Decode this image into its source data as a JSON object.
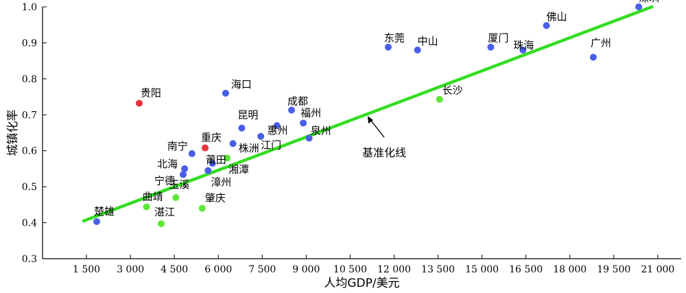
{
  "chart_data": {
    "type": "scatter",
    "xlabel": "人均GDP/美元",
    "ylabel": "城镇化率",
    "xlim": [
      0,
      21800
    ],
    "ylim": [
      0.3,
      1.0
    ],
    "xticks": [
      1500,
      3000,
      4500,
      6000,
      7500,
      9000,
      10500,
      12000,
      13500,
      15000,
      16500,
      18000,
      19500,
      21000
    ],
    "xtick_labels": [
      "1 500",
      "3 000",
      "4 500",
      "6 000",
      "7 500",
      "9 000",
      "10 500",
      "12 000",
      "13 500",
      "15 000",
      "16 500",
      "18 000",
      "19 500",
      "21 000"
    ],
    "yticks": [
      0.3,
      0.4,
      0.5,
      0.6,
      0.7,
      0.8,
      0.9,
      1.0
    ],
    "ytick_labels": [
      "0.3",
      "0.4",
      "0.5",
      "0.6",
      "0.7",
      "0.8",
      "0.9",
      "1.0"
    ],
    "colors": {
      "above": "#4a5ee8",
      "below": "#5ee63a",
      "far_below": "#e8303a",
      "trend": "#33dd22"
    },
    "trend_line": {
      "label": "基准化线",
      "x": [
        1400,
        20800
      ],
      "y": [
        0.405,
        1.0
      ]
    },
    "points": [
      {
        "name": "深圳",
        "x": 20350,
        "y": 1.0,
        "group": "above"
      },
      {
        "name": "佛山",
        "x": 17200,
        "y": 0.948,
        "group": "above"
      },
      {
        "name": "广州",
        "x": 18800,
        "y": 0.86,
        "group": "above"
      },
      {
        "name": "厦门",
        "x": 15300,
        "y": 0.888,
        "group": "above"
      },
      {
        "name": "珠海",
        "x": 16400,
        "y": 0.88,
        "group": "above"
      },
      {
        "name": "东莞",
        "x": 11800,
        "y": 0.888,
        "group": "above"
      },
      {
        "name": "中山",
        "x": 12800,
        "y": 0.88,
        "group": "above"
      },
      {
        "name": "长沙",
        "x": 13550,
        "y": 0.743,
        "group": "below"
      },
      {
        "name": "海口",
        "x": 6250,
        "y": 0.76,
        "group": "above"
      },
      {
        "name": "成都",
        "x": 8500,
        "y": 0.713,
        "group": "above"
      },
      {
        "name": "福州",
        "x": 8900,
        "y": 0.677,
        "group": "above"
      },
      {
        "name": "昆明",
        "x": 6800,
        "y": 0.663,
        "group": "above"
      },
      {
        "name": "泉州",
        "x": 9100,
        "y": 0.635,
        "group": "above"
      },
      {
        "name": "惠州",
        "x": 8000,
        "y": 0.67,
        "group": "above"
      },
      {
        "name": "江门",
        "x": 7450,
        "y": 0.64,
        "group": "above"
      },
      {
        "name": "贵阳",
        "x": 3300,
        "y": 0.732,
        "group": "far_below"
      },
      {
        "name": "重庆",
        "x": 5550,
        "y": 0.608,
        "group": "far_below"
      },
      {
        "name": "南宁",
        "x": 5100,
        "y": 0.592,
        "group": "above"
      },
      {
        "name": "株洲",
        "x": 6500,
        "y": 0.62,
        "group": "above"
      },
      {
        "name": "莆田",
        "x": 5800,
        "y": 0.565,
        "group": "above"
      },
      {
        "name": "湘潭",
        "x": 6300,
        "y": 0.58,
        "group": "below"
      },
      {
        "name": "漳州",
        "x": 5650,
        "y": 0.545,
        "group": "above"
      },
      {
        "name": "北海",
        "x": 4850,
        "y": 0.55,
        "group": "above"
      },
      {
        "name": "宁德",
        "x": 4800,
        "y": 0.534,
        "group": "above"
      },
      {
        "name": "玉溪",
        "x": 4550,
        "y": 0.47,
        "group": "below"
      },
      {
        "name": "曲靖",
        "x": 3550,
        "y": 0.444,
        "group": "below"
      },
      {
        "name": "肇庆",
        "x": 5450,
        "y": 0.44,
        "group": "below"
      },
      {
        "name": "湛江",
        "x": 4050,
        "y": 0.397,
        "group": "below"
      },
      {
        "name": "楚雄",
        "x": 1850,
        "y": 0.403,
        "group": "above"
      }
    ]
  }
}
